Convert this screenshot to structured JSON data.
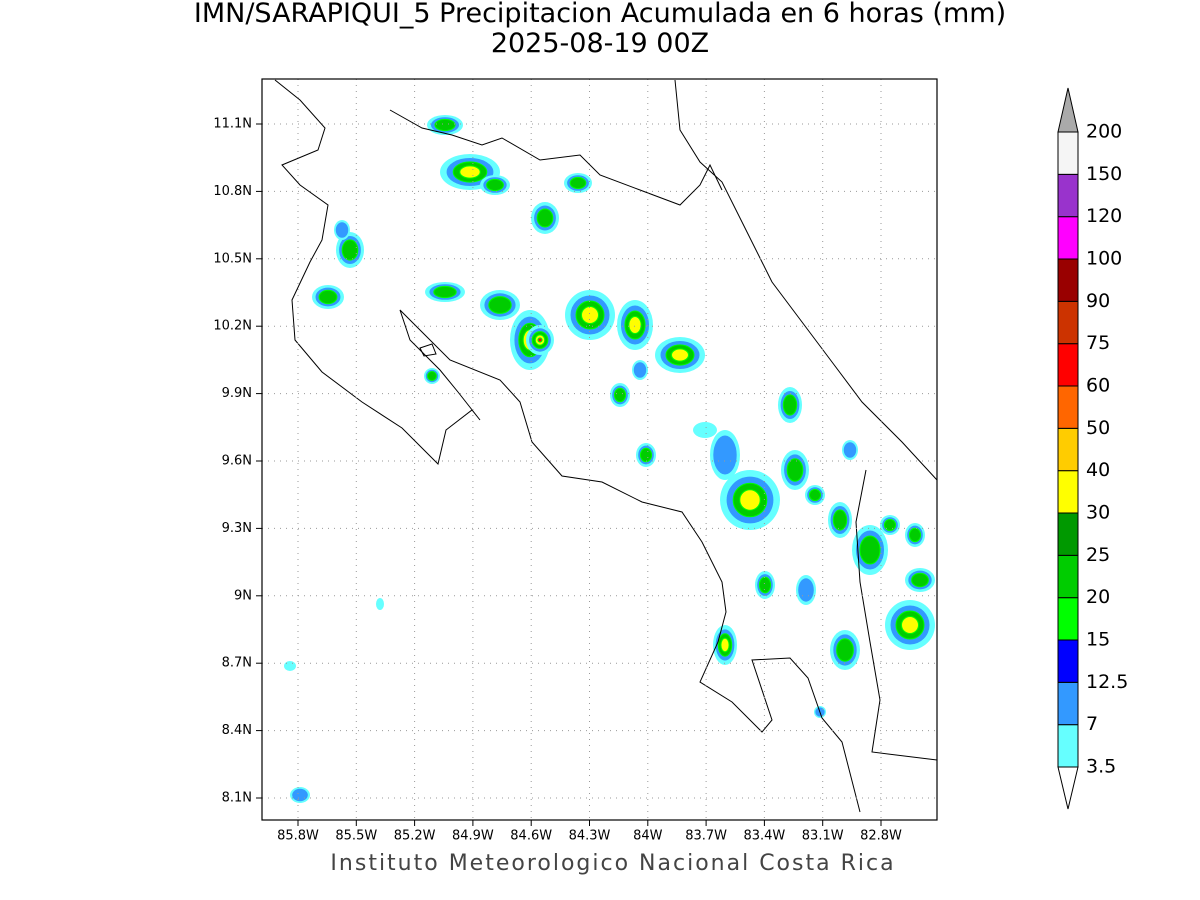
{
  "title": "IMN/SARAPIQUI_5 Precipitacion Acumulada en 6 horas (mm)",
  "subtitle": "2025-08-19 00Z",
  "map": {
    "lon_ticks": [
      "85.8W",
      "85.5W",
      "85.2W",
      "84.9W",
      "84.6W",
      "84.3W",
      "84W",
      "83.7W",
      "83.4W",
      "83.1W",
      "82.8W"
    ],
    "lat_ticks": [
      "11.1N",
      "10.8N",
      "10.5N",
      "10.2N",
      "9.9N",
      "9.6N",
      "9.3N",
      "9N",
      "8.7N",
      "8.4N",
      "8.1N"
    ]
  },
  "colorbar": {
    "levels": [
      3.5,
      7,
      12.5,
      15,
      20,
      25,
      30,
      40,
      50,
      60,
      75,
      90,
      100,
      120,
      150,
      200
    ],
    "colors": [
      "#ffffff",
      "#66ffff",
      "#3399ff",
      "#0000ff",
      "#00ff00",
      "#00cc00",
      "#009900",
      "#ffff00",
      "#ffcc00",
      "#ff6600",
      "#ff0000",
      "#cc3300",
      "#990000",
      "#ff00ff",
      "#9933cc",
      "#f5f5f5",
      "#aaaaaa"
    ]
  },
  "footer": "Instituto Meteorologico Nacional Costa Rica"
}
